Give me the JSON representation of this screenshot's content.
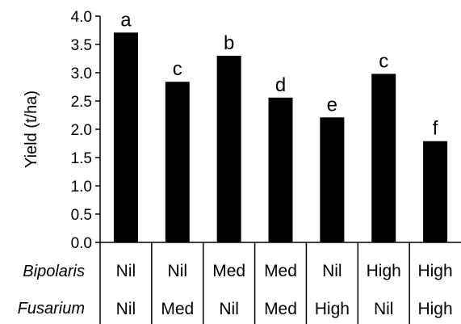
{
  "chart_data": {
    "type": "bar",
    "ylabel": "Yield (t/ha)",
    "ylim": [
      0,
      4
    ],
    "yticks": [
      "0.0",
      "0.5",
      "1.0",
      "1.5",
      "2.0",
      "2.5",
      "3.0",
      "3.5",
      "4.0"
    ],
    "grid": false,
    "bar_color": "#000000",
    "factor_labels": [
      "Bipolaris",
      "Fusarium"
    ],
    "categories": [
      {
        "bipolaris": "Nil",
        "fusarium": "Nil",
        "value": 3.71,
        "sig": "a"
      },
      {
        "bipolaris": "Nil",
        "fusarium": "Med",
        "value": 2.84,
        "sig": "c"
      },
      {
        "bipolaris": "Med",
        "fusarium": "Nil",
        "value": 3.3,
        "sig": "b"
      },
      {
        "bipolaris": "Med",
        "fusarium": "Med",
        "value": 2.56,
        "sig": "d"
      },
      {
        "bipolaris": "Nil",
        "fusarium": "High",
        "value": 2.21,
        "sig": "e"
      },
      {
        "bipolaris": "High",
        "fusarium": "Nil",
        "value": 2.98,
        "sig": "c"
      },
      {
        "bipolaris": "High",
        "fusarium": "High",
        "value": 1.79,
        "sig": "f"
      }
    ]
  }
}
